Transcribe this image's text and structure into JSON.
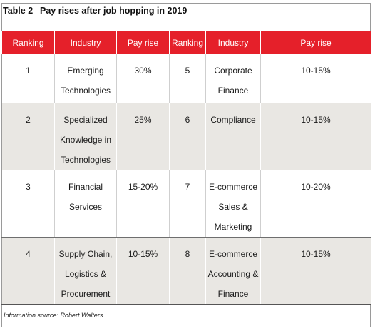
{
  "table": {
    "number": "Table 2",
    "title": "Pay rises after job hopping in 2019",
    "headers": [
      "Ranking",
      "Industry",
      "Pay rise",
      "Ranking",
      "Industry",
      "Pay rise"
    ],
    "rows": [
      {
        "left": {
          "ranking": "1",
          "industry": "Emerging Technologies",
          "pay_rise": "30%"
        },
        "right": {
          "ranking": "5",
          "industry": "Corporate Finance",
          "pay_rise": "10-15%"
        }
      },
      {
        "left": {
          "ranking": "2",
          "industry": "Specialized Knowledge in Technologies",
          "pay_rise": "25%"
        },
        "right": {
          "ranking": "6",
          "industry": "Compliance",
          "pay_rise": "10-15%"
        }
      },
      {
        "left": {
          "ranking": "3",
          "industry": "Financial Services",
          "pay_rise": "15-20%"
        },
        "right": {
          "ranking": "7",
          "industry": "E-commerce Sales & Marketing",
          "pay_rise": "10-20%"
        }
      },
      {
        "left": {
          "ranking": "4",
          "industry": "Supply Chain, Logistics & Procurement",
          "pay_rise": "10-15%"
        },
        "right": {
          "ranking": "8",
          "industry": "E-commerce Accounting & Finance",
          "pay_rise": "10-15%"
        }
      }
    ],
    "source": "Information source: Robert Walters"
  },
  "colors": {
    "header_background": "#e5202a",
    "header_text": "#ffffff",
    "shaded_row": "#e9e7e3"
  }
}
